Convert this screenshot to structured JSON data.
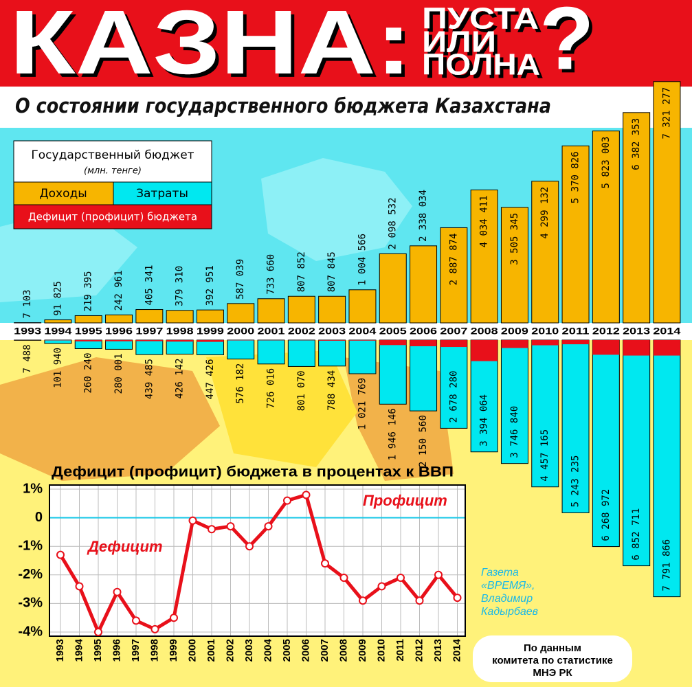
{
  "header": {
    "title": "КАЗНА:",
    "question_lines": [
      "ПУСТА",
      "ИЛИ",
      "ПОЛНА"
    ],
    "question_mark": "?",
    "subtitle": "О состоянии государственного бюджета Казахстана"
  },
  "chart_data": [
    {
      "type": "bar",
      "categories": [
        "1993",
        "1994",
        "1995",
        "1996",
        "1997",
        "1998",
        "1999",
        "2000",
        "2001",
        "2002",
        "2003",
        "2004",
        "2005",
        "2006",
        "2007",
        "2008",
        "2009",
        "2010",
        "2011",
        "2012",
        "2013",
        "2014"
      ],
      "legend": {
        "title": "Государственный бюджет",
        "subtitle": "(млн. тенге)"
      },
      "ylim": [
        -7800000,
        7400000
      ],
      "series": [
        {
          "name": "Доходы",
          "color": "#f7b500",
          "values": [
            7103,
            91825,
            219395,
            242961,
            405341,
            379310,
            392951,
            587039,
            733660,
            807852,
            807845,
            1004566,
            2098532,
            2338034,
            2887874,
            4034411,
            3505345,
            4299132,
            5370826,
            5823003,
            6382353,
            7321277
          ],
          "value_labels": [
            "7 103",
            "91 825",
            "219 395",
            "242 961",
            "405 341",
            "379 310",
            "392 951",
            "587 039",
            "733 660",
            "807 852",
            "807 845",
            "1 004 566",
            "2 098 532",
            "2 338 034",
            "2 887 874",
            "4 034 411",
            "3 505 345",
            "4 299 132",
            "5 370 826",
            "5 823 003",
            "6 382 353",
            "7 321 277"
          ]
        },
        {
          "name": "Затраты",
          "color": "#00e8f0",
          "values": [
            7488,
            101940,
            260240,
            280001,
            439485,
            426142,
            447426,
            576182,
            726016,
            801070,
            788434,
            1021769,
            1946146,
            2150560,
            2678280,
            3394064,
            3746840,
            4457165,
            5243235,
            6268972,
            6852711,
            7791866
          ],
          "value_labels": [
            "7 488",
            "101 940",
            "260 240",
            "280 001",
            "439 485",
            "426 142",
            "447 426",
            "576 182",
            "726 016",
            "801 070",
            "788 434",
            "1 021 769",
            "1 946 146",
            "2 150 560",
            "2 678 280",
            "3 394 064",
            "3 746 840",
            "4 457 165",
            "5 243 235",
            "6 268 972",
            "6 852 711",
            "7 791 866"
          ]
        },
        {
          "name": "Дефицит (профицит) бюджета",
          "color": "#e8101a",
          "values": [
            -385,
            -10115,
            -40845,
            -37040,
            -34144,
            -46832,
            -54475,
            10857,
            7644,
            6782,
            19411,
            -17203,
            152386,
            187474,
            209594,
            640347,
            -241495,
            -158033,
            127591,
            -445969,
            -470358,
            -470589
          ]
        }
      ]
    },
    {
      "type": "line",
      "title": "Дефицит (профицит) бюджета в процентах к ВВП",
      "categories": [
        "1993",
        "1994",
        "1995",
        "1996",
        "1997",
        "1998",
        "1999",
        "2000",
        "2001",
        "2002",
        "2003",
        "2004",
        "2005",
        "2006",
        "2007",
        "2008",
        "2009",
        "2010",
        "2011",
        "2012",
        "2013",
        "2014"
      ],
      "values": [
        -1.3,
        -2.4,
        -4.0,
        -2.6,
        -3.6,
        -3.9,
        -3.5,
        -0.1,
        -0.4,
        -0.3,
        -1.0,
        -0.3,
        0.6,
        0.8,
        -1.6,
        -2.1,
        -2.9,
        -2.4,
        -2.1,
        -2.9,
        -2.0,
        -2.8
      ],
      "color": "#e8101a",
      "ylim": [
        -4,
        1
      ],
      "yticks": [
        {
          "value": 1,
          "label": "1%"
        },
        0,
        {
          "value": -1,
          "label": "-1%"
        },
        {
          "value": -2,
          "label": "-2%"
        },
        {
          "value": -3,
          "label": "-3%"
        },
        {
          "value": -4,
          "label": "-4%"
        }
      ],
      "grid": true,
      "annotations": [
        "Профицит",
        "Дефицит"
      ]
    }
  ],
  "notes": {
    "credit": [
      "Газета",
      "«ВРЕМЯ»,",
      "Владимир",
      "Кадырбаев"
    ],
    "source": [
      "По данным",
      "комитета по статистике",
      "МНЭ РК"
    ]
  }
}
